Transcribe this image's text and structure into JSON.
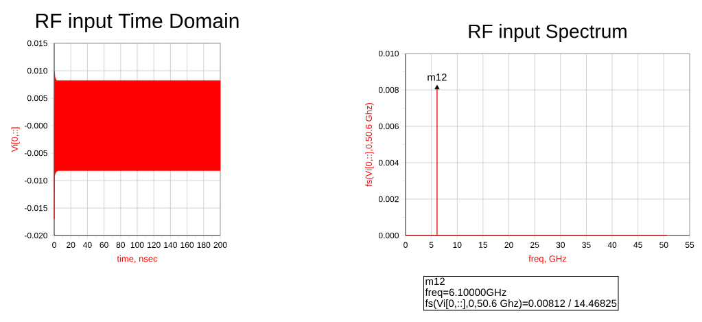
{
  "chart_data": [
    {
      "type": "area",
      "title": "RF input Time Domain",
      "xlabel": "time, nsec",
      "ylabel": "Vi[0,::]",
      "xlim": [
        0,
        200
      ],
      "xticks": [
        0,
        20,
        40,
        60,
        80,
        100,
        120,
        140,
        160,
        180,
        200
      ],
      "ylim": [
        -0.02,
        0.015
      ],
      "yticks": [
        {
          "value": -0.02,
          "label": "-0.020"
        },
        {
          "value": -0.015,
          "label": "-0.015"
        },
        {
          "value": -0.01,
          "label": "-0.010"
        },
        {
          "value": -0.005,
          "label": "-0.005"
        },
        {
          "value": 0,
          "label": "-0.000"
        },
        {
          "value": 0.005,
          "label": "0.005"
        },
        {
          "value": 0.01,
          "label": "0.010"
        },
        {
          "value": 0.015,
          "label": "0.015"
        }
      ],
      "grid": true,
      "series": [
        {
          "color": "#ff0000",
          "x": [
            0,
            0.3,
            1,
            2,
            3,
            5,
            10,
            50,
            100,
            150,
            200
          ],
          "values": [
            0,
            0.0098,
            0.0088,
            0.0084,
            0.0082,
            0.0082,
            0.0082,
            0.0082,
            0.0082,
            0.0082,
            0.0082
          ]
        },
        {
          "color": "#ff0000",
          "x": [
            0,
            0.3,
            1,
            2,
            3,
            5,
            10,
            50,
            100,
            150,
            200
          ],
          "values": [
            -0.017,
            -0.0092,
            -0.0088,
            -0.0085,
            -0.0083,
            -0.0082,
            -0.0082,
            -0.0082,
            -0.0082,
            -0.0082,
            -0.0082
          ]
        }
      ]
    },
    {
      "type": "line",
      "title": "RF input Spectrum",
      "xlabel": "freq, GHz",
      "ylabel": "fs(Vi[0,::],0,50.6 Ghz)",
      "xlim": [
        0,
        55
      ],
      "xticks": [
        0,
        5,
        10,
        15,
        20,
        25,
        30,
        35,
        40,
        45,
        50,
        55
      ],
      "ylim": [
        0,
        0.01
      ],
      "yticks": [
        {
          "value": 0,
          "label": "0.000"
        },
        {
          "value": 0.002,
          "label": "0.002"
        },
        {
          "value": 0.004,
          "label": "0.004"
        },
        {
          "value": 0.006,
          "label": "0.006"
        },
        {
          "value": 0.008,
          "label": "0.008"
        },
        {
          "value": 0.01,
          "label": "0.010"
        }
      ],
      "grid": true,
      "series": [
        {
          "color": "#e8201e",
          "x": [
            0,
            6.1,
            6.1,
            6.1,
            50.6
          ],
          "values": [
            0,
            0,
            0.00812,
            0,
            0
          ]
        },
        {
          "type": "scatter",
          "marker": "triangle",
          "color": "#000000",
          "x": [
            6.1
          ],
          "values": [
            0.00812
          ]
        }
      ],
      "annotations": [
        {
          "text": "m12",
          "x": 6.1,
          "y": 0.00812
        },
        "m12",
        "freq=6.10000GHz",
        "fs(Vi[0,::],0,50.6 Ghz)=0.00812 / 14.46825"
      ]
    }
  ]
}
